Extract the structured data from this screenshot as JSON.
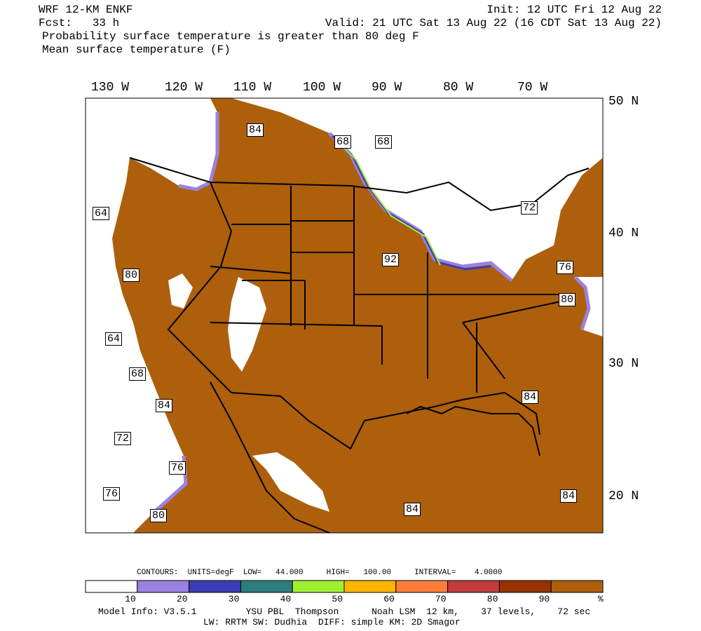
{
  "header": {
    "model": "WRF 12-KM ENKF",
    "init": "Init: 12 UTC Fri 12 Aug 22",
    "forecast": "Fcst:   33 h",
    "valid": "Valid: 21 UTC Sat 13 Aug 22 (16 CDT Sat 13 Aug 22)",
    "line1": "Probability surface temperature is greater than 80 deg F",
    "line2": "Mean surface temperature (F)"
  },
  "map": {
    "longitude_labels": [
      "130 W",
      "120 W",
      "110 W",
      "100 W",
      "90 W",
      "80 W",
      "70 W"
    ],
    "latitude_labels": [
      "50 N",
      "40 N",
      "30 N",
      "20 N"
    ],
    "contour_labels": [
      "84",
      "68",
      "68",
      "64",
      "72",
      "92",
      "80",
      "76",
      "80",
      "64",
      "68",
      "84",
      "72",
      "76",
      "76",
      "80",
      "84",
      "84",
      "84"
    ]
  },
  "colorbar": {
    "caption": "CONTOURS:  UNITS=degF  LOW=   44.000     HIGH=   100.00     INTERVAL=    4.0000",
    "labels": [
      "10",
      "20",
      "30",
      "40",
      "50",
      "60",
      "70",
      "80",
      "90"
    ],
    "unit": "%",
    "colors": [
      "#ffffff",
      "#9b82e0",
      "#3c3cb4",
      "#2e7d7d",
      "#a0f032",
      "#ffb400",
      "#ff7d3c",
      "#c03c3c",
      "#963200",
      "#ad5f0c"
    ]
  },
  "footer": {
    "line1": "Model Info: V3.5.1         YSU PBL  Thompson      Noah LSM  12 km,    37 levels,    72 sec",
    "line2": "LW: RRTM SW: Dudhia  DIFF: simple KM: 2D Smagor"
  }
}
